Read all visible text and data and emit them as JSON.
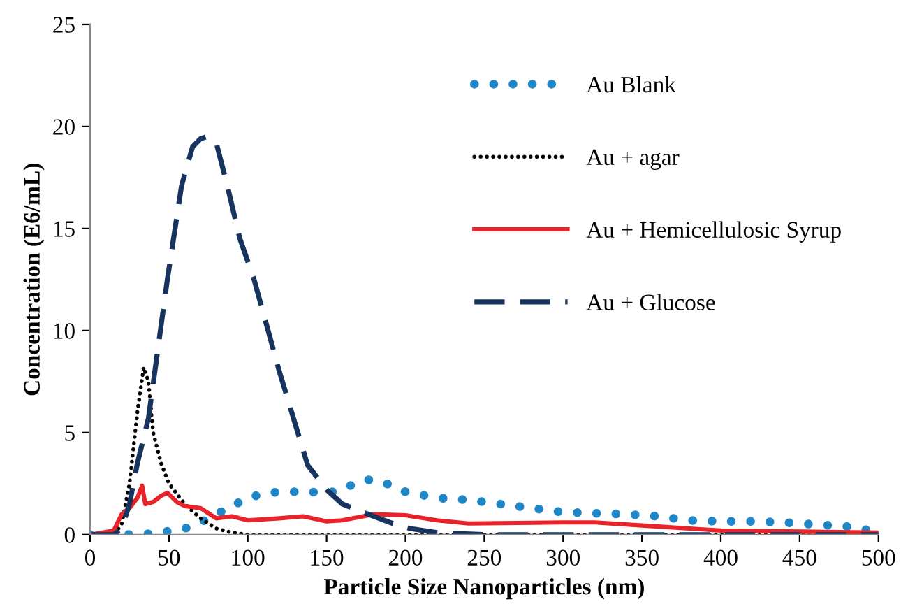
{
  "chart_data": {
    "type": "line",
    "xlabel": "Particle Size Nanoparticles (nm)",
    "ylabel": "Concentration (E6/mL)",
    "xlim": [
      0,
      500
    ],
    "xticks": [
      0,
      50,
      100,
      150,
      200,
      250,
      300,
      350,
      400,
      450,
      500
    ],
    "ylim": [
      0,
      25
    ],
    "yticks": [
      0,
      5,
      10,
      15,
      20,
      25
    ],
    "grid": false,
    "legend": "top right",
    "marker": "none",
    "series": [
      {
        "name": "Au Blank",
        "color": "#1f86c8",
        "line_style": "dotted",
        "x": [
          0,
          20,
          40,
          60,
          70,
          80,
          90,
          100,
          110,
          120,
          140,
          150,
          165,
          175,
          185,
          200,
          220,
          240,
          260,
          280,
          300,
          320,
          340,
          360,
          380,
          400,
          420,
          440,
          460,
          480,
          495
        ],
        "values": [
          0,
          0,
          0.05,
          0.3,
          0.6,
          1.0,
          1.4,
          1.8,
          2.0,
          2.1,
          2.1,
          2.0,
          2.4,
          2.7,
          2.6,
          2.1,
          1.8,
          1.7,
          1.5,
          1.3,
          1.1,
          1.05,
          1.0,
          0.9,
          0.7,
          0.65,
          0.65,
          0.6,
          0.5,
          0.4,
          0.2
        ]
      },
      {
        "name": "Au + agar",
        "color": "#000000",
        "line_style": "dotted",
        "x": [
          0,
          15,
          20,
          25,
          30,
          34,
          37,
          40,
          45,
          50,
          60,
          70,
          80,
          90,
          100,
          200,
          300,
          400,
          500
        ],
        "values": [
          0,
          0,
          0.5,
          2.5,
          6,
          8.2,
          7.5,
          5,
          3.5,
          2.5,
          1.5,
          0.8,
          0.3,
          0.1,
          0,
          0,
          0,
          0,
          0
        ]
      },
      {
        "name": "Au + Hemicellulosic Syrup",
        "color": "#e8242a",
        "line_style": "solid",
        "x": [
          0,
          15,
          20,
          25,
          30,
          33,
          35,
          40,
          45,
          49,
          55,
          60,
          70,
          80,
          90,
          100,
          120,
          135,
          150,
          160,
          180,
          200,
          220,
          240,
          300,
          320,
          350,
          400,
          450,
          500
        ],
        "values": [
          0,
          0.2,
          1,
          1.3,
          1.8,
          2.4,
          1.5,
          1.6,
          1.9,
          2.05,
          1.6,
          1.4,
          1.3,
          0.8,
          0.9,
          0.7,
          0.8,
          0.9,
          0.65,
          0.7,
          1.0,
          0.95,
          0.7,
          0.55,
          0.6,
          0.6,
          0.45,
          0.2,
          0.15,
          0.1
        ]
      },
      {
        "name": "Au + Glucose",
        "color": "#17345f",
        "line_style": "dashed",
        "x": [
          0,
          15,
          20,
          25,
          30,
          37,
          49,
          58,
          65,
          70,
          74,
          80,
          87,
          95,
          104,
          120,
          138,
          150,
          160,
          173,
          190,
          203,
          220,
          250,
          300,
          400,
          500
        ],
        "values": [
          0,
          0,
          0.3,
          1.5,
          3.5,
          5.7,
          12.5,
          17.1,
          19,
          19.4,
          19.5,
          19.2,
          17.1,
          14.5,
          12.5,
          8,
          3.4,
          2.2,
          1.5,
          1.1,
          0.6,
          0.3,
          0.1,
          0,
          0,
          0,
          0
        ]
      }
    ]
  }
}
